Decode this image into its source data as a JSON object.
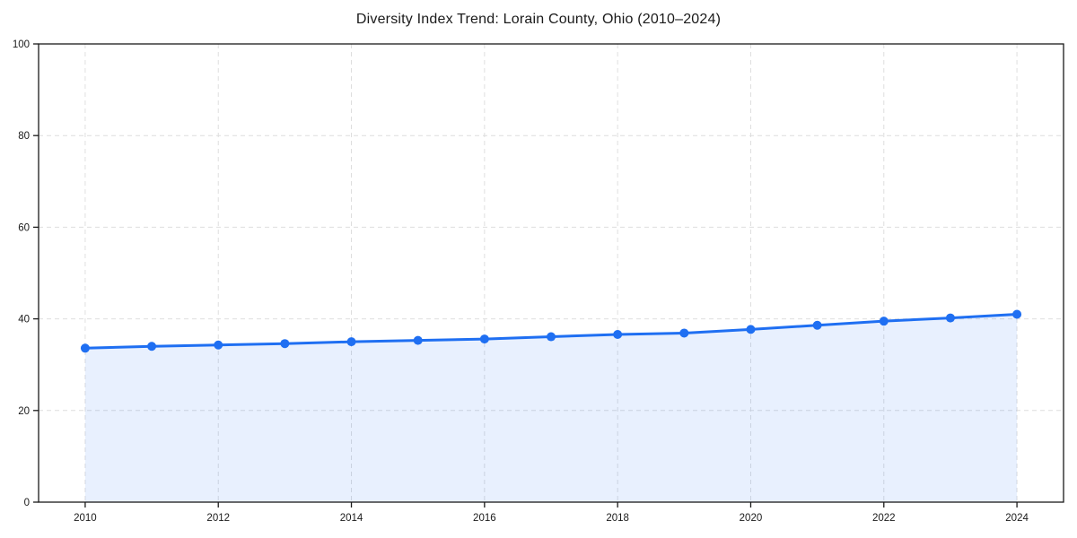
{
  "chart_data": {
    "type": "line",
    "title": "Diversity Index Trend: Lorain County, Ohio (2010–2024)",
    "x": [
      2010,
      2011,
      2012,
      2013,
      2014,
      2015,
      2016,
      2017,
      2018,
      2019,
      2020,
      2021,
      2022,
      2023,
      2024
    ],
    "series": [
      {
        "name": "Diversity Index",
        "values": [
          33.6,
          34.0,
          34.3,
          34.6,
          35.0,
          35.3,
          35.6,
          36.1,
          36.6,
          36.9,
          37.7,
          38.6,
          39.5,
          40.2,
          41.0
        ]
      }
    ],
    "xlabel": "",
    "ylabel": "",
    "xlim": [
      2009.3,
      2024.7
    ],
    "ylim": [
      0,
      100
    ],
    "x_ticks": [
      2010,
      2012,
      2014,
      2016,
      2018,
      2020,
      2022,
      2024
    ],
    "y_ticks": [
      0,
      20,
      40,
      60,
      80,
      100
    ],
    "grid": true,
    "grid_style": "dashed",
    "legend": "none",
    "marker": "circle",
    "colors": {
      "line": "#1f6ff2",
      "marker": "#1f6ff2",
      "fill": "rgba(31,111,242,0.10)",
      "grid": "#dedede",
      "spine": "#1a1a1a",
      "text": "#1a1a1a",
      "background": "#ffffff"
    }
  }
}
